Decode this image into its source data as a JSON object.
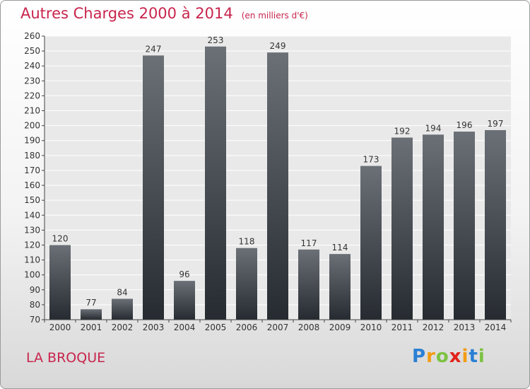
{
  "title": "Autres Charges 2000 à 2014",
  "subtitle": "(en milliers d'€)",
  "commune": "LA BROQUE",
  "logo": {
    "letters": [
      "P",
      "r",
      "o",
      "x",
      "i",
      "t",
      "i"
    ],
    "colors": [
      "#2a7fd4",
      "#f39c12",
      "#7cc242",
      "#e2231a",
      "#f39c12",
      "#2a7fd4",
      "#7cc242"
    ]
  },
  "colors": {
    "title": "#c8254d",
    "bar_top": "#6b7077",
    "bar_bottom": "#262b31",
    "plot_bg": "#e9e9e9",
    "grid": "#ffffff"
  },
  "chart_data": {
    "type": "bar",
    "title": "Autres Charges 2000 à 2014",
    "xlabel": "",
    "ylabel": "",
    "categories": [
      "2000",
      "2001",
      "2002",
      "2003",
      "2004",
      "2005",
      "2006",
      "2007",
      "2008",
      "2009",
      "2010",
      "2011",
      "2012",
      "2013",
      "2014"
    ],
    "values": [
      120,
      77,
      84,
      247,
      96,
      253,
      118,
      249,
      117,
      114,
      173,
      192,
      194,
      196,
      197
    ],
    "ylim": [
      70,
      260
    ],
    "ytick_step": 10,
    "grid": true,
    "legend": "none"
  }
}
